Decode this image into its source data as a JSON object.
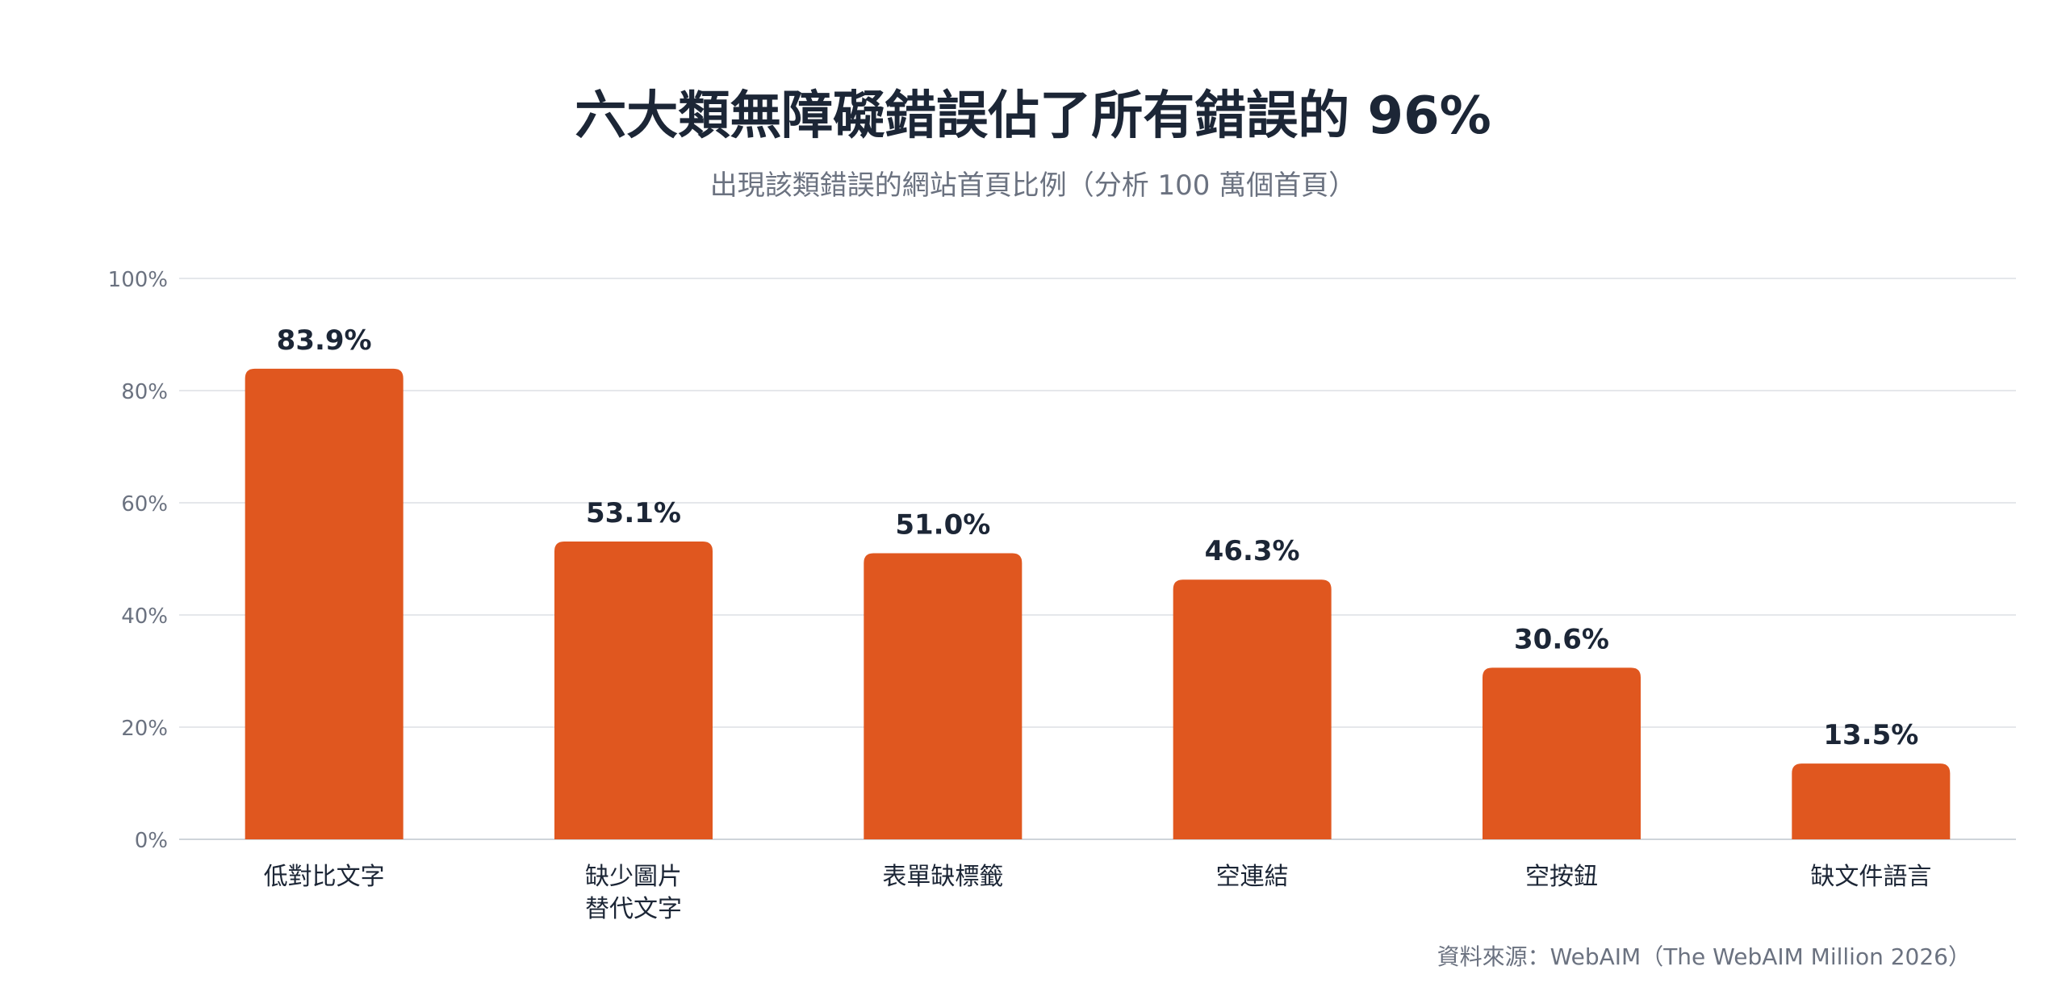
{
  "chart_data": {
    "type": "bar",
    "title": "六大類無障礙錯誤佔了所有錯誤的 96%",
    "subtitle": "出現該類錯誤的網站首頁比例（分析 100 萬個首頁）",
    "xlabel": "",
    "ylabel": "",
    "ylim": [
      0,
      100
    ],
    "yticks": [
      0,
      20,
      40,
      60,
      80,
      100
    ],
    "ytick_labels": [
      "0%",
      "20%",
      "40%",
      "60%",
      "80%",
      "100%"
    ],
    "grid": true,
    "categories": [
      [
        "低對比文字"
      ],
      [
        "缺少圖片",
        "替代文字"
      ],
      [
        "表單缺標籤"
      ],
      [
        "空連結"
      ],
      [
        "空按鈕"
      ],
      [
        "缺文件語言"
      ]
    ],
    "values": [
      83.9,
      53.1,
      51.0,
      46.3,
      30.6,
      13.5
    ],
    "value_labels": [
      "83.9%",
      "53.1%",
      "51.0%",
      "46.3%",
      "30.6%",
      "13.5%"
    ],
    "bar_color": "#e0571f",
    "source": "資料來源：WebAIM（The WebAIM Million 2026）"
  }
}
